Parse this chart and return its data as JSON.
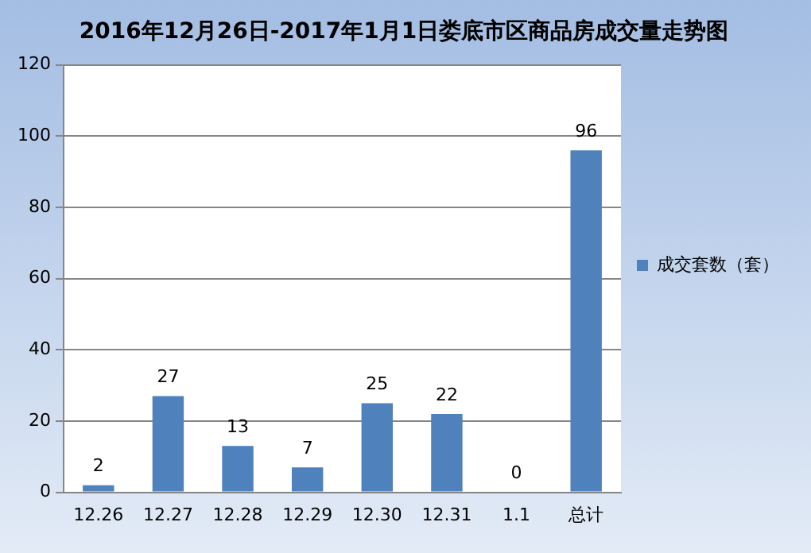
{
  "chart_data": {
    "type": "bar",
    "title": "2016年12月26日-2017年1月1日娄底市区商品房成交量走势图",
    "categories": [
      "12.26",
      "12.27",
      "12.28",
      "12.29",
      "12.30",
      "12.31",
      "1.1",
      "总计"
    ],
    "series": [
      {
        "name": "成交套数（套）",
        "color": "#4f81bd",
        "values": [
          2,
          27,
          13,
          7,
          25,
          22,
          0,
          96
        ]
      }
    ],
    "ylim": [
      0,
      120
    ],
    "yticks": [
      0,
      20,
      40,
      60,
      80,
      100,
      120
    ],
    "grid": "y",
    "legend": "right",
    "data_labels": true
  }
}
